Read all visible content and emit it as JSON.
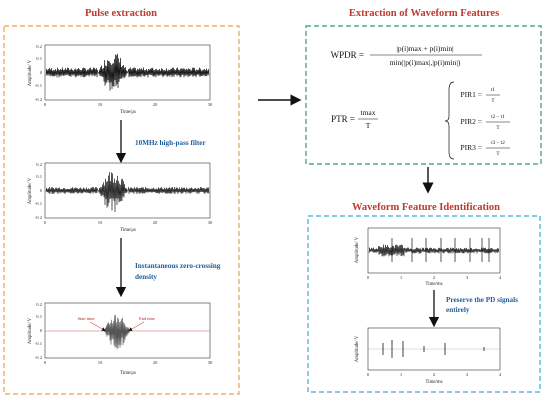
{
  "left_panel": {
    "title": "Pulse extraction",
    "chart1": {
      "ylabel": "Amplitude/ V",
      "xlabel": "Time/μs",
      "yticks": [
        "0.2",
        "0.1",
        "0",
        "-0.1",
        "-0.2"
      ],
      "xticks": [
        "0",
        "10",
        "20",
        "30"
      ]
    },
    "step1_label": "10MHz high-pass filter",
    "chart2": {
      "ylabel": "Amplitude/ V",
      "xlabel": "Time/μs",
      "yticks": [
        "0.2",
        "0.1",
        "0",
        "-0.1",
        "-0.2"
      ],
      "xticks": [
        "0",
        "10",
        "20",
        "30"
      ]
    },
    "step2_label_line1": "Instantaneous zero-crossing",
    "step2_label_line2": "density",
    "chart3": {
      "ylabel": "Amplitude/ V",
      "xlabel": "Time/μs",
      "yticks": [
        "0.2",
        "0.1",
        "0",
        "-0.1",
        "-0.2"
      ],
      "xticks": [
        "0",
        "10",
        "20",
        "30"
      ],
      "start_label": "Start time",
      "end_label": "End time"
    }
  },
  "right_top_panel": {
    "title": "Extraction of Waveform Features",
    "wpdr_lhs": "WPDR =",
    "wpdr_num": "|p(i)max + p(i)min|",
    "wpdr_den": "min(|p(i)max|,|p(i)min|)",
    "ptr_lhs": "PTR =",
    "ptr_num": "tmax",
    "ptr_den": "T",
    "pir1": "PIR1 =",
    "pir1_num": "t1",
    "pir2": "PIR2 =",
    "pir2_num": "t2 − t1",
    "pir3": "PIR3 =",
    "pir3_num": "t3 − t2",
    "pir_den": "T"
  },
  "right_bottom_panel": {
    "title": "Waveform Feature Identification",
    "chart4": {
      "ylabel": "Amplitude/ V",
      "xlabel": "Time/ms",
      "xticks": [
        "0",
        "1",
        "2",
        "3",
        "4"
      ]
    },
    "step_label_line1": "Preserve the PD signals",
    "step_label_line2": "entirely",
    "chart5": {
      "ylabel": "Amplitude/ V",
      "xlabel": "Time/ms",
      "xticks": [
        "0",
        "1",
        "2",
        "3",
        "4"
      ]
    }
  },
  "colors": {
    "orange": "#e8a24a",
    "green": "#2e9b6a",
    "cyan": "#3aaed8",
    "red": "#c0392b",
    "blue": "#1f5c99"
  }
}
